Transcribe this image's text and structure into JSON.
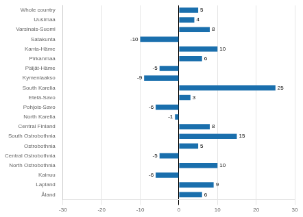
{
  "chart_data": {
    "type": "bar",
    "orientation": "horizontal",
    "categories": [
      "Whole country",
      "Uusimaa",
      "Varsinais-Suomi",
      "Satakunta",
      "Kanta-Häme",
      "Pirkanmaa",
      "Päijät-Häme",
      "Kymenlaakso",
      "South Karelia",
      "Etelä-Savo",
      "Pohjois-Savo",
      "North Karelia",
      "Central Finland",
      "South Ostrobothnia",
      "Ostrobothnia",
      "Central Ostrobothnia",
      "North Ostrobothnia",
      "Kainuu",
      "Lapland",
      "Åland"
    ],
    "values": [
      5,
      4,
      8,
      -10,
      10,
      6,
      -5,
      -9,
      25,
      3,
      -6,
      -1,
      8,
      15,
      5,
      -5,
      10,
      -6,
      9,
      6
    ],
    "color": "#1A6FAD",
    "xlim": [
      -30,
      30
    ],
    "xticks": [
      -30,
      -20,
      -10,
      0,
      10,
      20,
      30
    ],
    "grid": true,
    "data_labels": true
  }
}
